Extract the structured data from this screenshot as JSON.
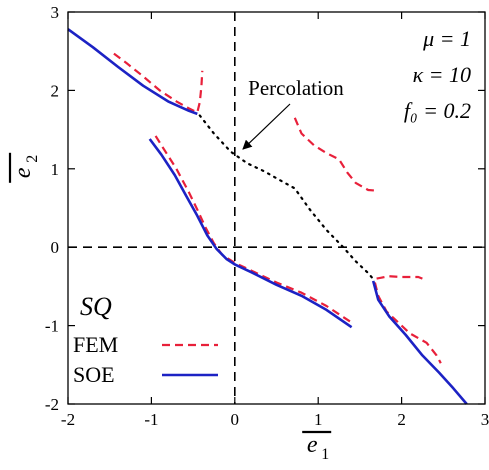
{
  "chart_data": {
    "type": "line",
    "xlabel": "e̅₁",
    "ylabel": "e̅₂",
    "xlim": [
      -2,
      3
    ],
    "ylim": [
      -2,
      3
    ],
    "x_ticks": [
      -2,
      -1,
      0,
      1,
      2,
      3
    ],
    "y_ticks": [
      -2,
      -1,
      0,
      1,
      2,
      3
    ],
    "x_tick_labels": [
      "-2",
      "-1",
      "0",
      "1",
      "2",
      "3"
    ],
    "y_tick_labels": [
      "-2",
      "-1",
      "0",
      "1",
      "2",
      "3"
    ],
    "parameters": {
      "mu": "μ = 1",
      "kappa": "κ = 10",
      "f0": "f₀ = 0.2"
    },
    "annotation": "Percolation",
    "annotation_target": {
      "x": 0.05,
      "y": 1.2
    },
    "case_label": "SQ",
    "legend_position": "bottom-left",
    "colors": {
      "FEM": "#e8203a",
      "SOE": "#1c22c4",
      "percolation": "#000000",
      "axes": "#000000"
    },
    "series": [
      {
        "name": "FEM",
        "style": "dashed",
        "segments": [
          [
            [
              -1.45,
              2.47
            ],
            [
              -1.3,
              2.35
            ],
            [
              -1.1,
              2.18
            ],
            [
              -0.9,
              2.0
            ],
            [
              -0.7,
              1.86
            ],
            [
              -0.55,
              1.77
            ],
            [
              -0.45,
              1.72
            ],
            [
              -0.42,
              1.85
            ],
            [
              -0.4,
              2.05
            ],
            [
              -0.39,
              2.25
            ]
          ],
          [
            [
              -0.95,
              1.42
            ],
            [
              -0.85,
              1.25
            ],
            [
              -0.7,
              1.0
            ],
            [
              -0.55,
              0.7
            ],
            [
              -0.45,
              0.48
            ],
            [
              -0.35,
              0.25
            ],
            [
              -0.25,
              0.05
            ],
            [
              -0.15,
              -0.1
            ],
            [
              0.0,
              -0.2
            ],
            [
              0.2,
              -0.3
            ],
            [
              0.5,
              -0.45
            ],
            [
              0.8,
              -0.58
            ],
            [
              1.1,
              -0.75
            ],
            [
              1.4,
              -0.96
            ]
          ],
          [
            [
              0.72,
              1.65
            ],
            [
              0.8,
              1.45
            ],
            [
              0.95,
              1.3
            ],
            [
              1.1,
              1.2
            ],
            [
              1.25,
              1.12
            ],
            [
              1.35,
              0.95
            ],
            [
              1.45,
              0.82
            ],
            [
              1.6,
              0.73
            ],
            [
              1.72,
              0.72
            ]
          ],
          [
            [
              1.7,
              -0.4
            ],
            [
              1.85,
              -0.37
            ],
            [
              2.0,
              -0.38
            ],
            [
              2.2,
              -0.38
            ],
            [
              2.25,
              -0.4
            ]
          ],
          [
            [
              1.68,
              -0.45
            ],
            [
              1.72,
              -0.62
            ],
            [
              1.82,
              -0.82
            ],
            [
              1.95,
              -0.95
            ],
            [
              2.1,
              -1.1
            ],
            [
              2.3,
              -1.22
            ],
            [
              2.42,
              -1.38
            ],
            [
              2.47,
              -1.48
            ]
          ]
        ]
      },
      {
        "name": "SOE",
        "style": "solid",
        "segments": [
          [
            [
              -2.0,
              2.78
            ],
            [
              -1.7,
              2.55
            ],
            [
              -1.4,
              2.3
            ],
            [
              -1.1,
              2.06
            ],
            [
              -0.8,
              1.86
            ],
            [
              -0.55,
              1.74
            ],
            [
              -0.45,
              1.7
            ]
          ],
          [
            [
              -1.02,
              1.38
            ],
            [
              -0.88,
              1.18
            ],
            [
              -0.72,
              0.92
            ],
            [
              -0.58,
              0.65
            ],
            [
              -0.45,
              0.4
            ],
            [
              -0.33,
              0.15
            ],
            [
              -0.22,
              -0.02
            ],
            [
              -0.1,
              -0.15
            ],
            [
              0.0,
              -0.22
            ],
            [
              0.2,
              -0.32
            ],
            [
              0.5,
              -0.48
            ],
            [
              0.8,
              -0.62
            ],
            [
              1.1,
              -0.8
            ],
            [
              1.4,
              -1.02
            ]
          ],
          [
            [
              1.66,
              -0.43
            ],
            [
              1.72,
              -0.67
            ],
            [
              1.85,
              -0.88
            ],
            [
              2.05,
              -1.12
            ],
            [
              2.25,
              -1.38
            ],
            [
              2.45,
              -1.6
            ],
            [
              2.62,
              -1.8
            ],
            [
              2.78,
              -2.0
            ]
          ]
        ]
      },
      {
        "name": "percolation",
        "style": "dotted",
        "segments": [
          [
            [
              -0.42,
              1.68
            ],
            [
              -0.25,
              1.45
            ],
            [
              -0.05,
              1.22
            ],
            [
              0.15,
              1.07
            ],
            [
              0.35,
              0.97
            ],
            [
              0.55,
              0.85
            ],
            [
              0.72,
              0.75
            ],
            [
              0.9,
              0.48
            ],
            [
              1.1,
              0.22
            ],
            [
              1.3,
              0.0
            ],
            [
              1.45,
              -0.18
            ],
            [
              1.6,
              -0.33
            ],
            [
              1.67,
              -0.42
            ]
          ]
        ]
      }
    ],
    "legend": [
      {
        "name": "FEM",
        "style": "dashed"
      },
      {
        "name": "SOE",
        "style": "solid"
      }
    ]
  }
}
